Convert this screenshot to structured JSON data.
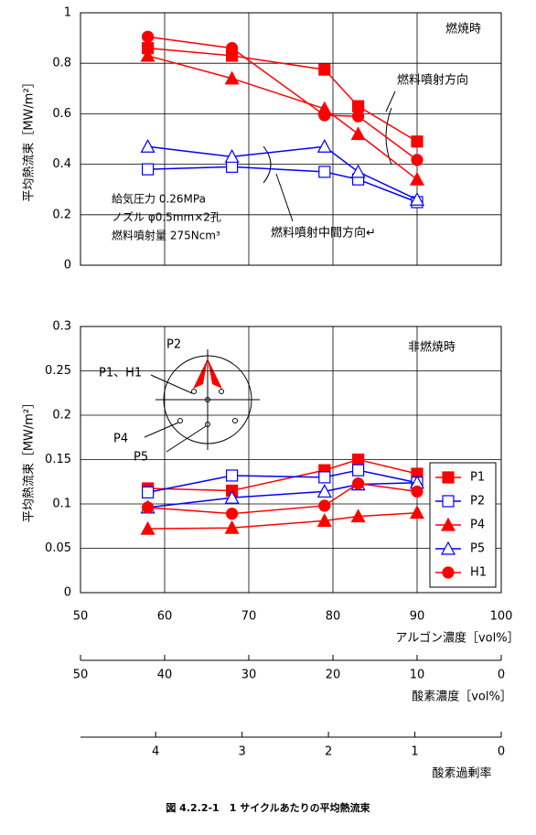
{
  "chart_data": [
    {
      "type": "line",
      "ylabel": "平均熱流束［MW/m²］",
      "xlim": [
        50,
        100
      ],
      "xticks": [
        50,
        60,
        70,
        80,
        90,
        100
      ],
      "ylim": [
        0,
        1
      ],
      "yticks": [
        0,
        0.2,
        0.4,
        0.6,
        0.8,
        1
      ],
      "grid": true,
      "x": [
        58,
        68,
        79,
        83,
        90
      ],
      "series": [
        {
          "name": "P1",
          "color": "#ff0000",
          "marker": "square",
          "values": [
            0.86,
            0.83,
            0.775,
            0.63,
            0.49
          ]
        },
        {
          "name": "P2",
          "color": "#0000ff",
          "marker": "square-open",
          "values": [
            0.38,
            0.39,
            0.37,
            0.34,
            0.25
          ]
        },
        {
          "name": "P4",
          "color": "#ff0000",
          "marker": "triangle",
          "values": [
            0.83,
            0.74,
            0.62,
            0.52,
            0.34
          ]
        },
        {
          "name": "P5",
          "color": "#0000ff",
          "marker": "triangle-open",
          "values": [
            0.47,
            0.43,
            0.47,
            0.37,
            0.26
          ]
        },
        {
          "name": "H1",
          "color": "#ff0000",
          "marker": "circle",
          "values": [
            0.905,
            0.86,
            0.594,
            0.59,
            0.417
          ]
        }
      ],
      "annotations": [
        "燃焼時",
        "燃料噴射方向",
        "燃料噴射中間方向↵",
        "給気圧力 0.26MPa",
        "ノズル φ0.5mm×2孔",
        "燃料噴射量 275Ncm³"
      ]
    },
    {
      "type": "line",
      "ylabel": "平均熱流束［MW/m²］",
      "xlabel": "アルゴン濃度［vol%］",
      "xlim": [
        50,
        100
      ],
      "xticks": [
        50,
        60,
        70,
        80,
        90,
        100
      ],
      "ylim": [
        0,
        0.3
      ],
      "yticks": [
        0,
        0.05,
        0.1,
        0.15,
        0.2,
        0.25,
        0.3
      ],
      "grid": true,
      "legend": "right",
      "x": [
        58,
        68,
        79,
        83,
        90
      ],
      "series": [
        {
          "name": "P1",
          "color": "#ff0000",
          "marker": "square",
          "values": [
            0.1175,
            0.115,
            0.138,
            0.15,
            0.134
          ]
        },
        {
          "name": "P2",
          "color": "#0000ff",
          "marker": "square-open",
          "values": [
            0.113,
            0.132,
            0.13,
            0.138,
            0.124
          ]
        },
        {
          "name": "P4",
          "color": "#ff0000",
          "marker": "triangle",
          "values": [
            0.072,
            0.073,
            0.081,
            0.086,
            0.09
          ]
        },
        {
          "name": "P5",
          "color": "#0000ff",
          "marker": "triangle-open",
          "values": [
            0.096,
            0.107,
            0.114,
            0.122,
            0.124
          ]
        },
        {
          "name": "H1",
          "color": "#ff0000",
          "marker": "circle",
          "values": [
            0.096,
            0.089,
            0.098,
            0.123,
            0.114
          ]
        }
      ],
      "annotations": [
        "非燃焼時",
        "P2",
        "P1、H1",
        "P4",
        "P5"
      ]
    },
    {
      "type": "axis",
      "xlabel": "酸素濃度［vol%］",
      "xlim": [
        50,
        0
      ],
      "xticks": [
        50,
        40,
        30,
        20,
        10,
        0
      ]
    },
    {
      "type": "axis",
      "xlabel": "酸素過剰率",
      "xlim": [
        4.87,
        0
      ],
      "xticks": [
        4,
        3,
        2,
        1,
        0
      ]
    }
  ],
  "caption": "図 4.2.2-1　1 サイクルあたりの平均熱流束"
}
